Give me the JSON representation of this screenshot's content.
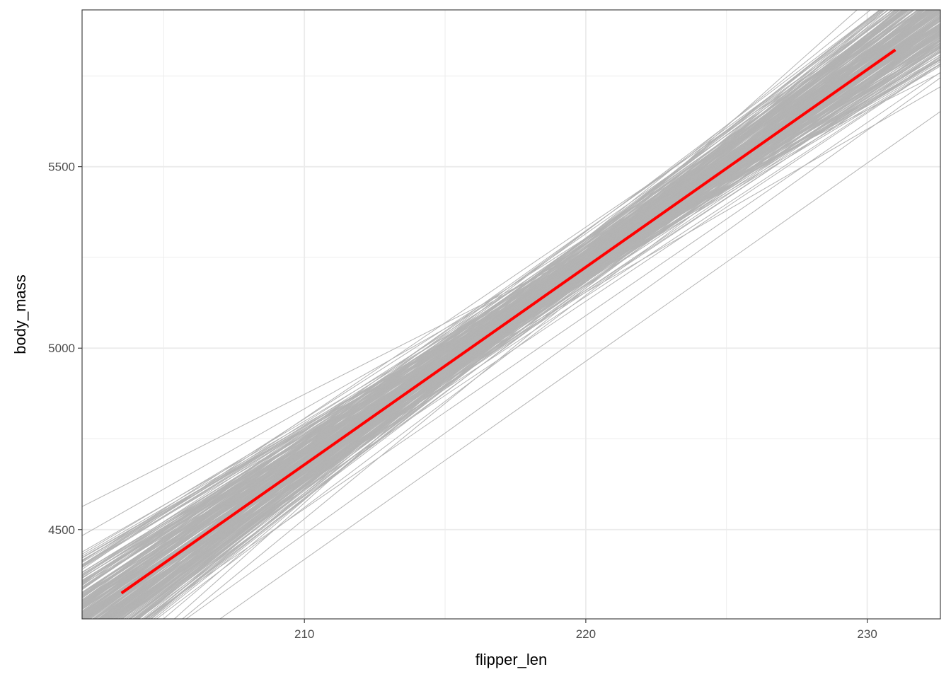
{
  "chart_data": {
    "type": "line",
    "title": "",
    "xlabel": "flipper_len",
    "ylabel": "body_mass",
    "xlim": [
      202.1,
      232.6
    ],
    "ylim": [
      4254,
      5932
    ],
    "x_ticks": [
      210,
      220,
      230
    ],
    "x_tick_labels": [
      "210",
      "220",
      "230"
    ],
    "y_ticks": [
      4500,
      5000,
      5500
    ],
    "y_tick_labels": [
      "4500",
      "5000",
      "5500"
    ],
    "grid": true,
    "theme": "bw",
    "fit_line": {
      "color": "#ff0000",
      "x": [
        203.5,
        231.0
      ],
      "y": [
        4325,
        5822
      ]
    },
    "posterior_lines": {
      "color": "#b3b3b3",
      "count": 300,
      "pivot": {
        "x": 218.5,
        "y": 5152
      },
      "slope_mean": 54.43,
      "slope_sd": 4.5,
      "x_range": [
        202.1,
        232.6
      ]
    },
    "outlier_lines": [
      {
        "x": [
          207.0,
          232.6
        ],
        "y": [
          4254,
          5652
        ]
      },
      {
        "x": [
          204.3,
          232.6
        ],
        "y": [
          4254,
          5760
        ]
      },
      {
        "x": [
          205.8,
          232.6
        ],
        "y": [
          4254,
          5745
        ]
      }
    ]
  }
}
